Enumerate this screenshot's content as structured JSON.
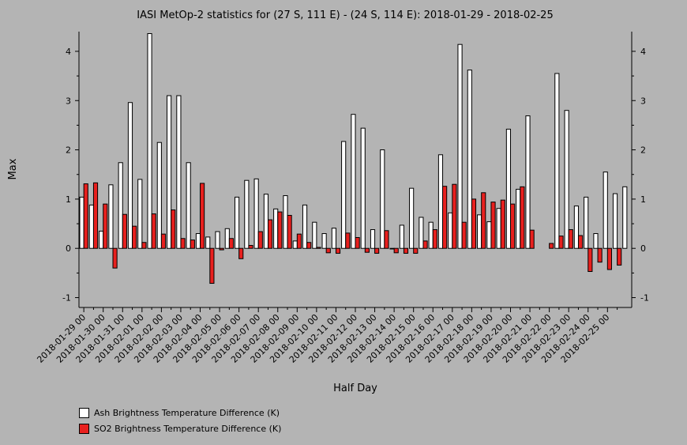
{
  "chart_data": {
    "type": "bar",
    "title": "IASI MetOp-2 statistics for (27 S, 111 E) - (24 S, 114 E): 2018-01-29 - 2018-02-25",
    "xlabel": "Half Day",
    "ylabel": "Max",
    "ylim": [
      -1.2,
      4.4
    ],
    "yticks": [
      -1,
      0,
      1,
      2,
      3,
      4
    ],
    "xtick_labels": [
      "2018-01-29 00",
      "2018-01-30 00",
      "2018-01-31 00",
      "2018-02-01 00",
      "2018-02-02 00",
      "2018-02-03 00",
      "2018-02-04 00",
      "2018-02-05 00",
      "2018-02-06 00",
      "2018-02-07 00",
      "2018-02-08 00",
      "2018-02-09 00",
      "2018-02-10 00",
      "2018-02-11 00",
      "2018-02-12 00",
      "2018-02-13 00",
      "2018-02-14 00",
      "2018-02-15 00",
      "2018-02-16 00",
      "2018-02-17 00",
      "2018-02-18 00",
      "2018-02-19 00",
      "2018-02-20 00",
      "2018-02-21 00",
      "2018-02-22 00",
      "2018-02-23 00",
      "2018-02-24 00",
      "2018-02-25 00"
    ],
    "series": [
      {
        "name": "Ash Brightness Temperature Difference (K)",
        "color": "#ffffff",
        "values": [
          1.04,
          0.88,
          0.35,
          1.29,
          1.74,
          2.96,
          1.4,
          4.36,
          2.15,
          3.1,
          3.1,
          1.74,
          0.3,
          0.23,
          0.34,
          0.4,
          1.04,
          1.38,
          1.41,
          1.1,
          0.8,
          1.07,
          0.15,
          0.88,
          0.53,
          0.3,
          0.41,
          2.17,
          2.72,
          2.44,
          0.38,
          2.0,
          0.0,
          0.47,
          1.22,
          0.63,
          0.53,
          1.9,
          0.72,
          4.14,
          3.62,
          0.68,
          0.54,
          0.81,
          2.42,
          1.2,
          2.69,
          null,
          null,
          3.55,
          2.8,
          0.86,
          1.04,
          0.3,
          1.55,
          1.11,
          1.25
        ]
      },
      {
        "name": "SO2 Brightness Temperature Difference (K)",
        "color": "#e8201e",
        "values": [
          1.31,
          1.33,
          0.9,
          -0.4,
          0.69,
          0.45,
          0.12,
          0.7,
          0.29,
          0.78,
          0.2,
          0.17,
          1.32,
          -0.71,
          -0.03,
          0.2,
          -0.21,
          0.06,
          0.34,
          0.58,
          0.74,
          0.67,
          0.29,
          0.12,
          0.02,
          -0.09,
          -0.1,
          0.31,
          0.22,
          -0.08,
          -0.1,
          0.36,
          -0.09,
          -0.1,
          -0.1,
          0.15,
          0.38,
          1.26,
          1.3,
          0.53,
          1.0,
          1.13,
          0.94,
          0.98,
          0.9,
          1.25,
          0.37,
          null,
          0.1,
          0.25,
          0.38,
          0.26,
          -0.47,
          -0.28,
          -0.43,
          -0.34,
          null
        ]
      }
    ],
    "legend_position": "bottom-left"
  }
}
